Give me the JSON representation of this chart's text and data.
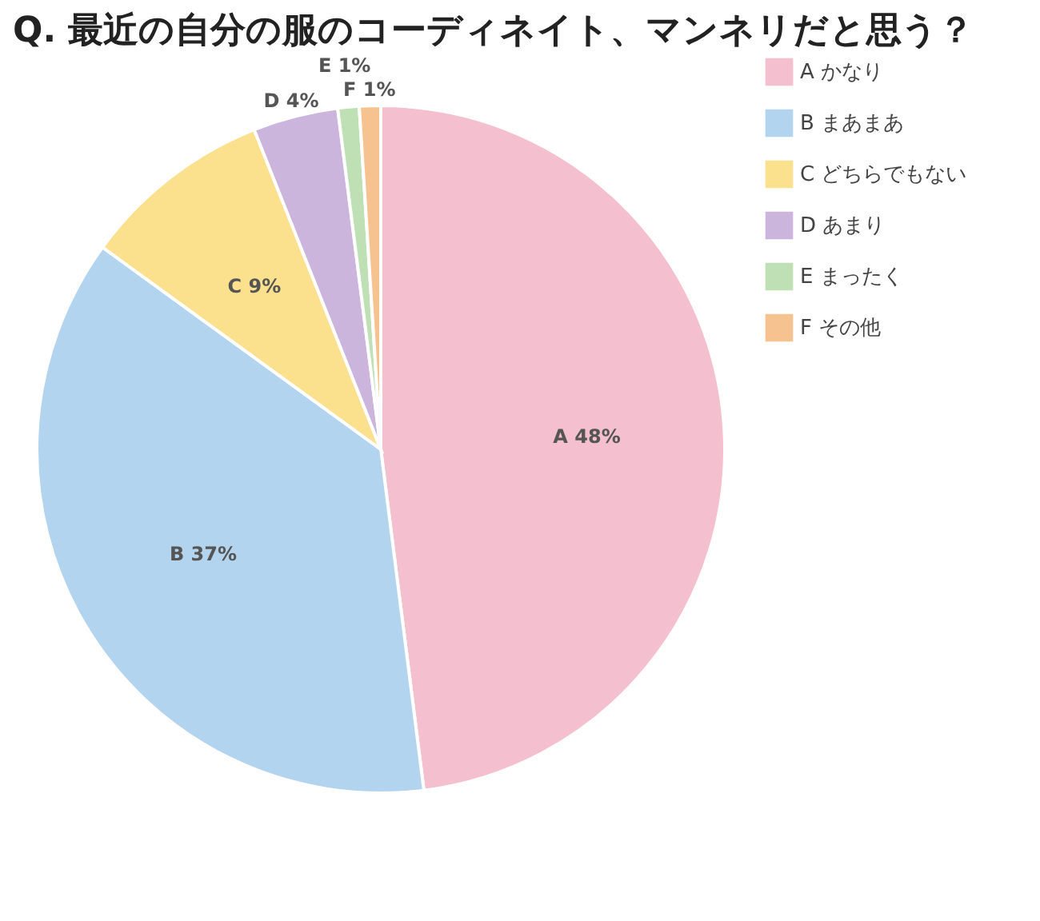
{
  "chart_data": {
    "type": "pie",
    "title": "Q. 最近の自分の服のコーディネイト、マンネリだと思う？",
    "categories": [
      "A かなり",
      "B まあまあ",
      "C どちらでもない",
      "D あまり",
      "E まったく",
      "F その他"
    ],
    "values": [
      48,
      37,
      9,
      4,
      1,
      1
    ],
    "colors": [
      "#f4bfcf",
      "#b3d4ee",
      "#fbe08e",
      "#cbb5dc",
      "#bfe0b5",
      "#f6c28f"
    ],
    "value_labels": [
      "A 48%",
      "B 37%",
      "C 9%",
      "D 4%",
      "E 1%",
      "F 1%"
    ],
    "legend": "right"
  }
}
